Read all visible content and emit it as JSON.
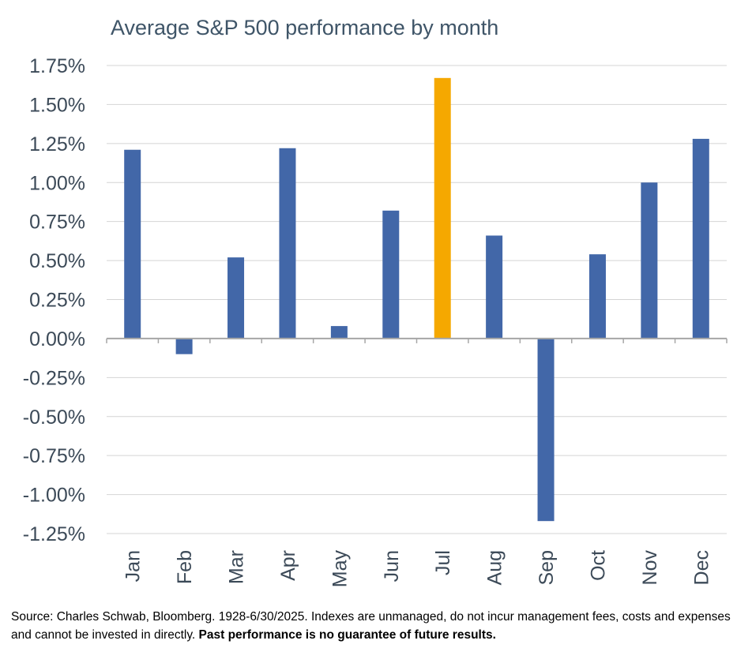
{
  "chart_data": {
    "type": "bar",
    "title": "Average S&P 500 performance by month",
    "categories": [
      "Jan",
      "Feb",
      "Mar",
      "Apr",
      "May",
      "Jun",
      "Jul",
      "Aug",
      "Sep",
      "Oct",
      "Nov",
      "Dec"
    ],
    "values": [
      1.21,
      -0.1,
      0.52,
      1.22,
      0.08,
      0.82,
      1.67,
      0.66,
      -1.17,
      0.54,
      1.0,
      1.28
    ],
    "unit": "%",
    "ylim": [
      -1.25,
      1.75
    ],
    "yticks": [
      "1.75%",
      "1.50%",
      "1.25%",
      "1.00%",
      "0.75%",
      "0.50%",
      "0.25%",
      "0.00%",
      "-0.25%",
      "-0.50%",
      "-0.75%",
      "-1.00%",
      "-1.25%"
    ],
    "ytick_values": [
      1.75,
      1.5,
      1.25,
      1.0,
      0.75,
      0.5,
      0.25,
      0.0,
      -0.25,
      -0.5,
      -0.75,
      -1.0,
      -1.25
    ],
    "grid": true,
    "legend": "none",
    "colors": {
      "default": "#4267a8",
      "highlight": "#f5a800"
    },
    "highlight_category": "Jul"
  },
  "footer": {
    "source_text": "Source: Charles Schwab, Bloomberg. 1928-6/30/2025. Indexes are unmanaged, do not incur management fees, costs and expenses and cannot be invested in directly. ",
    "disclaimer": "Past performance is no guarantee of future results."
  }
}
